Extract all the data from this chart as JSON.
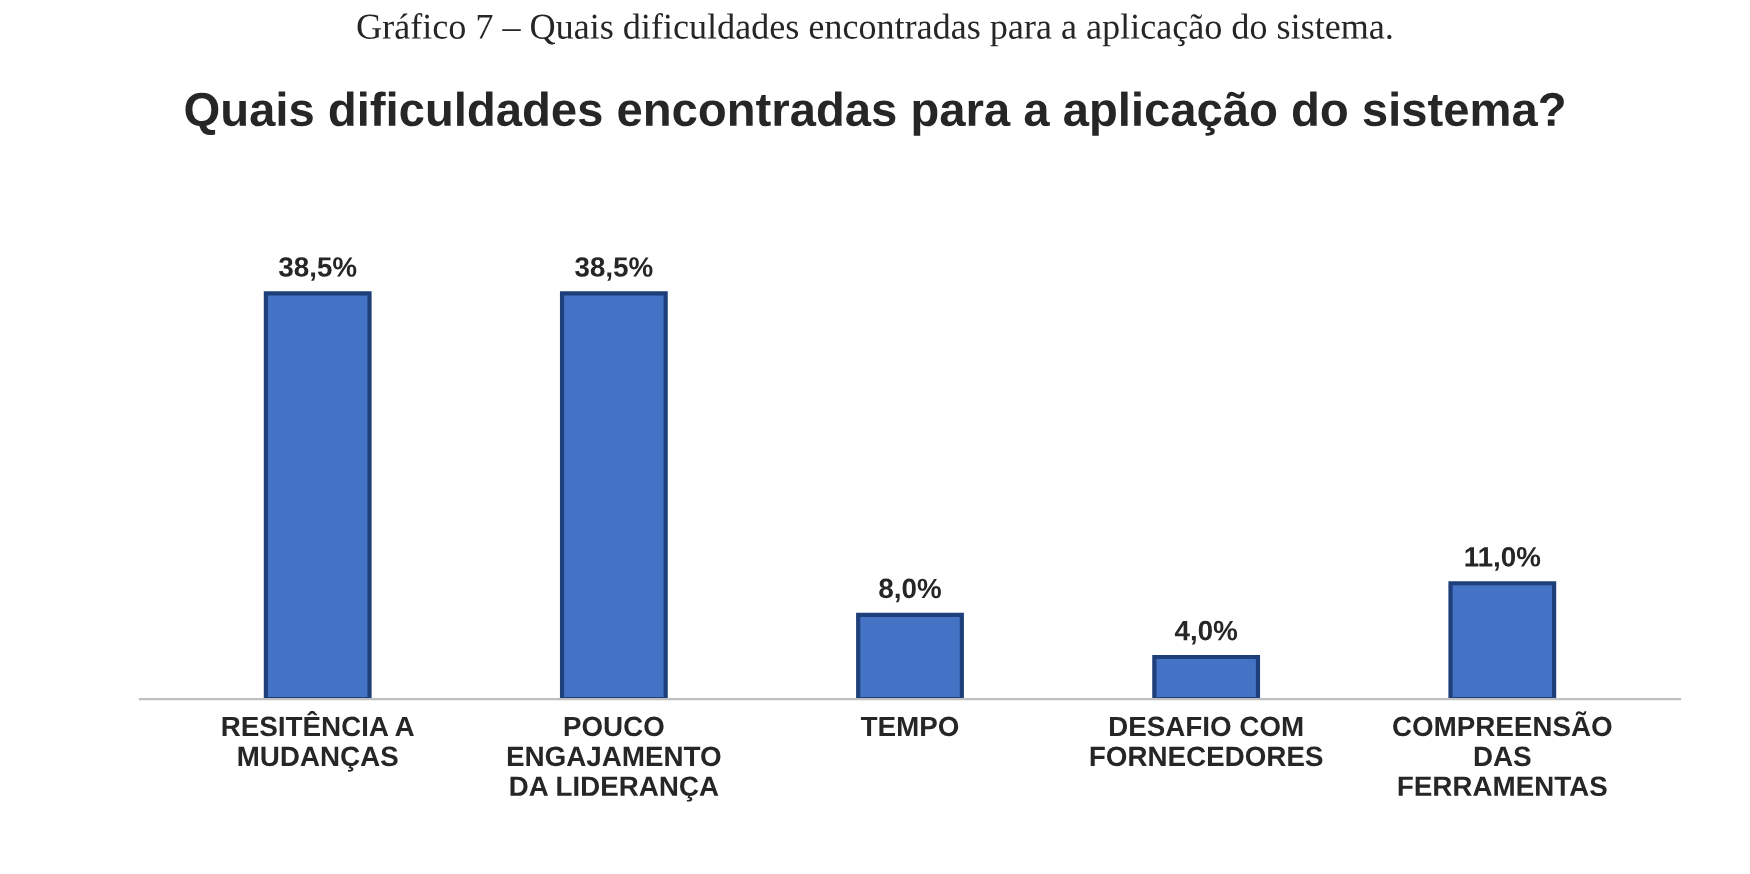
{
  "chart_data": {
    "type": "bar",
    "title": "Quais dificuldades encontradas para a aplicação do sistema?",
    "annotations": [
      "Gráfico 7 – Quais dificuldades encontradas para a aplicação do sistema."
    ],
    "categories": [
      "RESITÊNCIA A\nMUDANÇAS",
      "POUCO\nENGAJAMENTO\nDA LIDERANÇA",
      "TEMPO",
      "DESAFIO COM\nFORNECEDORES",
      "COMPREENSÃO\nDAS\nFERRAMENTAS"
    ],
    "values": [
      38.5,
      38.5,
      8.0,
      4.0,
      11.0
    ],
    "value_labels": [
      "38,5%",
      "38,5%",
      "8,0%",
      "4,0%",
      "11,0%"
    ],
    "color": "#4472c4"
  }
}
